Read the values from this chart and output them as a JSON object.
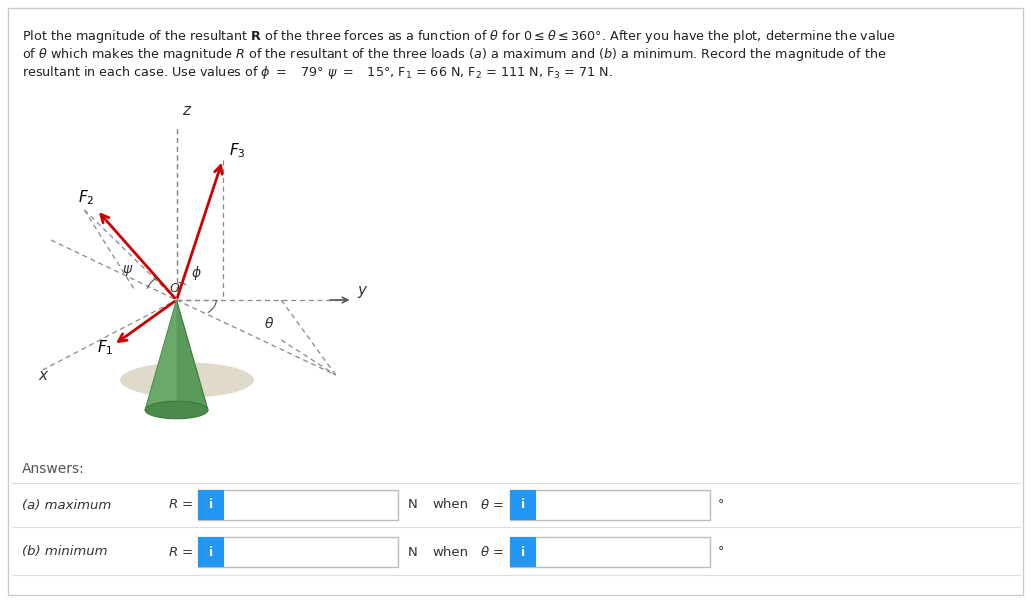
{
  "background_color": "#ffffff",
  "border_color": "#cccccc",
  "text_color": "#333333",
  "answers_label": "Answers:",
  "max_label": "(a) maximum",
  "min_label": "(b) minimum",
  "R_label": "R =",
  "N_label": "N",
  "when_label": "when",
  "theta_label": "θ =",
  "degree_symbol": "°",
  "info_button_color": "#2196F3",
  "info_button_text": "i",
  "info_button_text_color": "#ffffff",
  "cone_color": "#5a9a5a",
  "cone_light_color": "#7ab87a",
  "cone_dark_color": "#3a7a3a",
  "shadow_color": "#c8bea0",
  "arrow_color": "#cc0000",
  "axis_color": "#555555",
  "dashed_color": "#888888",
  "diagram_bg": "#ffffff",
  "title_line1": "Plot the magnitude of the resultant ·R· of the three forces as a function of θ for 0 ≤ θ ≤ 360°. After you have the plot, determine the value",
  "title_line2": "of θ which makes the magnitude R of the resultant of the three loads (a) a maximum and (b) a minimum. Record the magnitude of the",
  "title_line3": "resultant in each case. Use values of ϕ =  79° ψ =  15°, F₁ = 66 N, F₂ = 111 N, F₃ = 71 N."
}
